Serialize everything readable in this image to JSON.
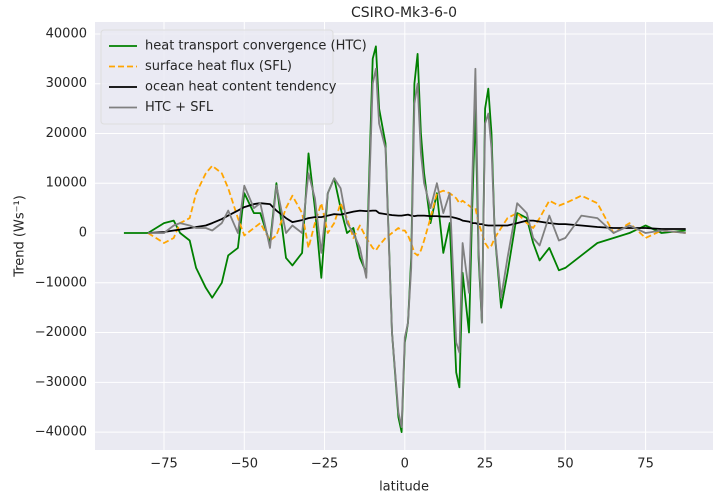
{
  "chart_data": {
    "type": "line",
    "title": "CSIRO-Mk3-6-0",
    "xlabel": "latitude",
    "ylabel": "Trend (Ws⁻¹)",
    "x": [
      -87.5,
      -80,
      -75,
      -72,
      -70,
      -67,
      -65,
      -62,
      -60,
      -57,
      -55,
      -52,
      -50,
      -47,
      -45,
      -42,
      -40,
      -37,
      -35,
      -32,
      -30,
      -28,
      -26,
      -24,
      -22,
      -20,
      -18,
      -16,
      -14,
      -12,
      -10,
      -9,
      -8,
      -6,
      -4,
      -2,
      -1,
      0,
      1,
      2,
      3,
      4,
      5,
      6,
      8,
      10,
      12,
      14,
      16,
      17,
      18,
      20,
      21,
      22,
      23,
      24,
      25,
      26,
      27,
      28,
      30,
      32,
      35,
      38,
      40,
      42,
      45,
      48,
      50,
      55,
      60,
      65,
      70,
      75,
      80,
      87.5
    ],
    "series": [
      {
        "name": "heat transport convergence (HTC)",
        "color": "#008000",
        "dash": "solid",
        "values": [
          0,
          0,
          2000,
          2500,
          0,
          -1500,
          -7000,
          -11000,
          -13000,
          -10000,
          -4500,
          -3000,
          8000,
          4000,
          4000,
          -2000,
          10000,
          -5000,
          -6500,
          -4000,
          16000,
          5000,
          -9000,
          8000,
          11000,
          5000,
          0,
          1000,
          -5000,
          -8000,
          35000,
          37500,
          25000,
          18000,
          -20000,
          -37000,
          -40000,
          -22000,
          -18000,
          -5000,
          30000,
          36000,
          20000,
          12000,
          2000,
          8000,
          -4000,
          2000,
          -28000,
          -31000,
          -8000,
          -20000,
          5000,
          25000,
          -5000,
          -18000,
          25000,
          29000,
          20000,
          0,
          -15000,
          -8000,
          4000,
          3000,
          -2000,
          -5500,
          -3000,
          -7500,
          -7000,
          -4500,
          -2000,
          -1000,
          0,
          1500,
          0,
          500
        ]
      },
      {
        "name": "surface heat flux (SFL)",
        "color": "#ffa500",
        "dash": "dashed",
        "values": [
          null,
          0,
          -2000,
          -1000,
          2000,
          3000,
          8000,
          12000,
          13500,
          12000,
          9000,
          3000,
          -500,
          1000,
          2000,
          -1500,
          -500,
          5000,
          7500,
          4000,
          -3000,
          2000,
          6000,
          0,
          2000,
          6000,
          3000,
          -1000,
          1500,
          -1000,
          -3000,
          -3500,
          -2500,
          -1000,
          0,
          1000,
          500,
          500,
          -500,
          -2000,
          -4000,
          -4500,
          -3500,
          -1500,
          3000,
          8000,
          8500,
          8000,
          7000,
          6000,
          6500,
          5500,
          5000,
          5000,
          2000,
          0,
          -2000,
          -3000,
          -2500,
          -1000,
          1000,
          3000,
          4000,
          2000,
          1000,
          3000,
          6500,
          5500,
          6000,
          7500,
          6000,
          0,
          2000,
          -1000,
          500,
          0
        ]
      },
      {
        "name": "ocean heat content tendency",
        "color": "#000000",
        "dash": "solid",
        "values": [
          null,
          0,
          200,
          500,
          700,
          1000,
          1200,
          1500,
          2000,
          2800,
          3500,
          4500,
          5200,
          5800,
          6000,
          5800,
          4500,
          3000,
          2200,
          2600,
          3000,
          3200,
          3200,
          3500,
          3800,
          3700,
          4000,
          4300,
          4500,
          4400,
          4500,
          4500,
          4000,
          3800,
          3600,
          3500,
          3500,
          3600,
          3700,
          3500,
          3400,
          3500,
          3500,
          3500,
          3400,
          3400,
          3300,
          3300,
          3000,
          2800,
          2500,
          2300,
          2000,
          2000,
          1800,
          1800,
          1600,
          1500,
          1500,
          1500,
          1500,
          1500,
          2000,
          2500,
          2500,
          2300,
          2000,
          1800,
          1800,
          1500,
          1200,
          1000,
          1000,
          1000,
          800,
          800
        ]
      },
      {
        "name": "HTC + SFL",
        "color": "#808080",
        "dash": "solid",
        "values": [
          null,
          0,
          0,
          1500,
          2000,
          1500,
          1000,
          1000,
          500,
          2000,
          4500,
          0,
          9500,
          5000,
          6000,
          -3000,
          9500,
          0,
          1500,
          0,
          12000,
          7000,
          -4000,
          8000,
          11000,
          9000,
          2000,
          0,
          -3000,
          -9000,
          30000,
          33000,
          22000,
          17000,
          -20000,
          -36000,
          -39000,
          -21000,
          -18000,
          -7000,
          26000,
          30000,
          16000,
          10000,
          5000,
          10000,
          4000,
          8000,
          -22000,
          -24000,
          -2000,
          -12000,
          10000,
          33000,
          -3000,
          -18000,
          22000,
          24000,
          17000,
          0,
          -13000,
          -5000,
          6000,
          4000,
          -1000,
          -2500,
          3500,
          -1500,
          -1000,
          3500,
          3000,
          0,
          1500,
          0,
          500,
          0
        ]
      }
    ],
    "xlim": [
      -96.5,
      96
    ],
    "ylim": [
      -43600,
      42400
    ],
    "xticks": [
      {
        "value": -75,
        "label": "−75"
      },
      {
        "value": -50,
        "label": "−50"
      },
      {
        "value": -25,
        "label": "−25"
      },
      0,
      25,
      50,
      75
    ],
    "yticks": [
      {
        "value": -40000,
        "label": "−40000"
      },
      {
        "value": -30000,
        "label": "−30000"
      },
      {
        "value": -20000,
        "label": "−20000"
      },
      {
        "value": -10000,
        "label": "−10000"
      },
      0,
      10000,
      20000,
      30000,
      40000
    ],
    "grid": true,
    "legend": "upper left"
  }
}
